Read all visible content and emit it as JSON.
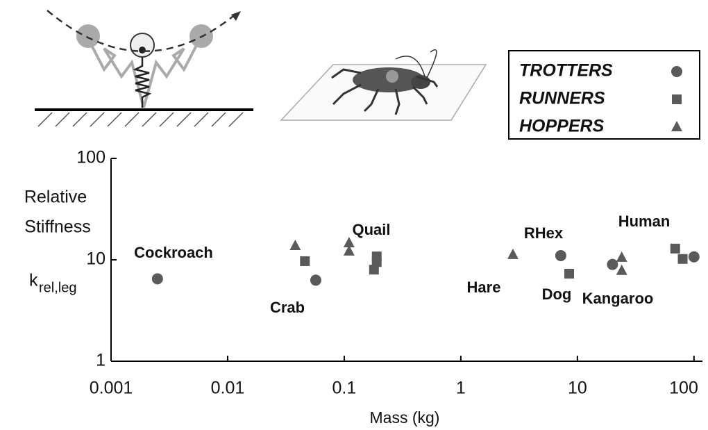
{
  "chart_data": {
    "type": "scatter",
    "xlabel": "Mass (kg)",
    "ylabel": [
      "Relative",
      "Stiffness"
    ],
    "ylabel_symbol": "k",
    "ylabel_subscript": "rel,leg",
    "log_x": true,
    "log_y": true,
    "xlim": [
      0.001,
      115
    ],
    "ylim": [
      1,
      100
    ],
    "xticks": [
      0.001,
      0.01,
      0.1,
      1,
      10,
      100
    ],
    "yticks": [
      1,
      10,
      100
    ],
    "legend": "top-right",
    "series": [
      {
        "name": "TROTTERS",
        "marker": "circle",
        "color": "#5a5a5a",
        "x": [
          0.0025,
          0.057,
          7.2,
          20,
          100
        ],
        "values": [
          6.5,
          6.3,
          11,
          9,
          10.7
        ]
      },
      {
        "name": "RUNNERS",
        "marker": "square",
        "color": "#5a5a5a",
        "x": [
          0.046,
          0.18,
          0.19,
          0.19,
          8.5,
          69,
          80
        ],
        "values": [
          9.7,
          8,
          9.5,
          10.8,
          7.3,
          12.9,
          10.2
        ]
      },
      {
        "name": "HOPPERS",
        "marker": "triangle",
        "color": "#5a5a5a",
        "x": [
          0.038,
          0.11,
          0.11,
          2.8,
          24,
          24
        ],
        "values": [
          13.7,
          14.6,
          12.1,
          11.2,
          10.5,
          7.8
        ]
      }
    ],
    "annotations": [
      "Cockroach",
      "Crab",
      "Quail",
      "Hare",
      "RHex",
      "Dog",
      "Kangaroo",
      "Human"
    ]
  }
}
